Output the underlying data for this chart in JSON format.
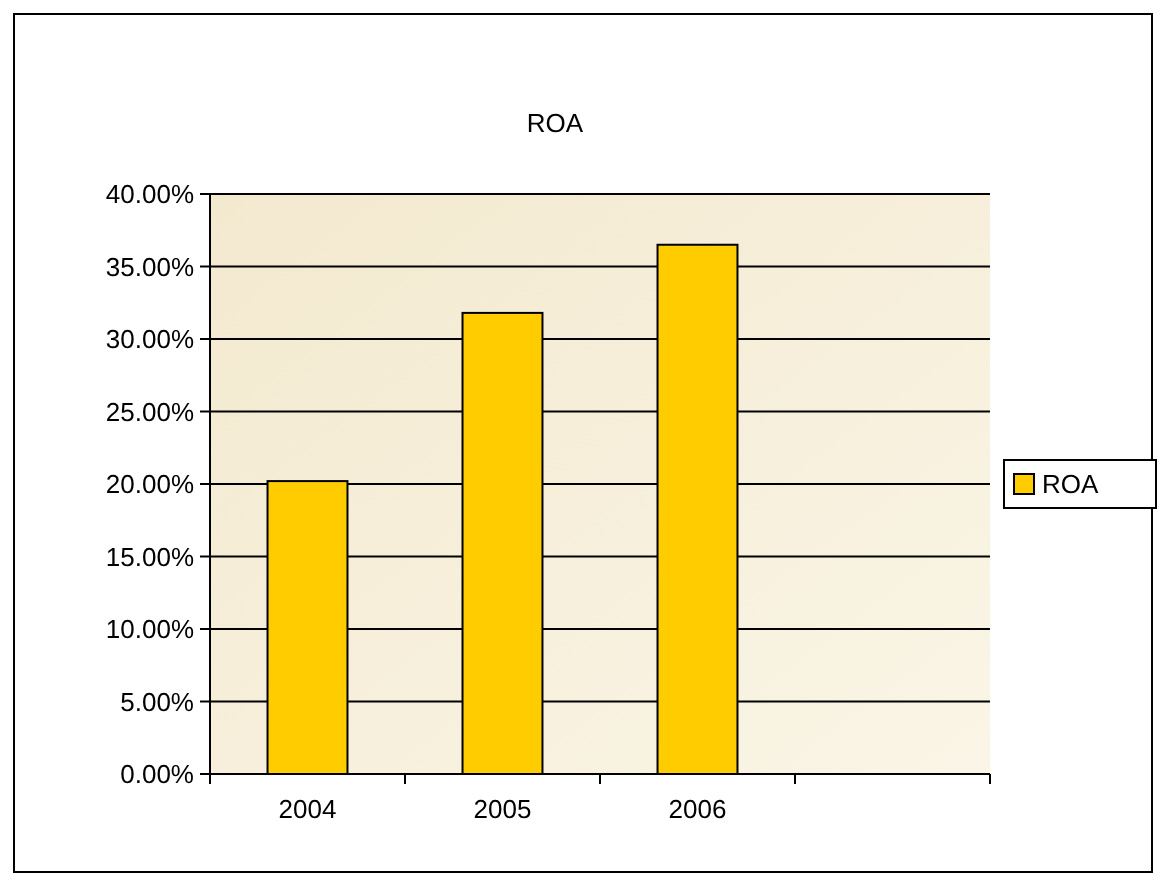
{
  "chart_data": {
    "type": "bar",
    "title": "ROA",
    "categories": [
      "2004",
      "2005",
      "2006",
      null
    ],
    "series": [
      {
        "name": "ROA",
        "color": "#ffcc00",
        "values": [
          20.2,
          31.8,
          36.5,
          null
        ]
      }
    ],
    "ylim": [
      0,
      40
    ],
    "yticks": [
      {
        "value": 0,
        "label": "0.00%"
      },
      {
        "value": 5,
        "label": "5.00%"
      },
      {
        "value": 10,
        "label": "10.00%"
      },
      {
        "value": 15,
        "label": "15.00%"
      },
      {
        "value": 20,
        "label": "20.00%"
      },
      {
        "value": 25,
        "label": "25.00%"
      },
      {
        "value": 30,
        "label": "30.00%"
      },
      {
        "value": 35,
        "label": "35.00%"
      },
      {
        "value": 40,
        "label": "40.00%"
      }
    ],
    "grid": "y",
    "legend": "right"
  }
}
